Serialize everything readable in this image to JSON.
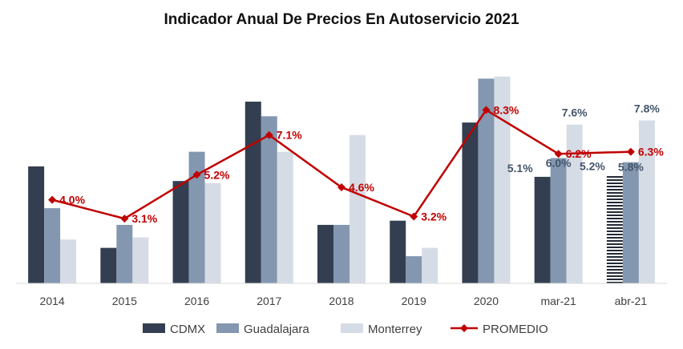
{
  "chart_data": {
    "type": "bar",
    "title": "Indicador Anual De Precios En Autoservicio 2021",
    "categories": [
      "2014",
      "2015",
      "2016",
      "2017",
      "2018",
      "2019",
      "2020",
      "mar-21",
      "abr-21"
    ],
    "series": [
      {
        "name": "CDMX",
        "type": "bar",
        "color": "#333f50",
        "values": [
          5.6,
          1.7,
          4.9,
          8.7,
          2.8,
          3.0,
          7.7,
          5.1,
          5.2
        ]
      },
      {
        "name": "Guadalajara",
        "type": "bar",
        "color": "#8497b0",
        "values": [
          3.6,
          2.8,
          6.3,
          8.0,
          2.8,
          1.3,
          9.8,
          6.0,
          5.8
        ]
      },
      {
        "name": "Monterrey",
        "type": "bar",
        "color": "#d6dce5",
        "values": [
          2.1,
          2.2,
          4.8,
          6.3,
          7.1,
          1.7,
          9.9,
          7.6,
          7.8
        ]
      },
      {
        "name": "PROMEDIO",
        "type": "line",
        "color": "#c00000",
        "values": [
          4.0,
          3.1,
          5.2,
          7.1,
          4.6,
          3.2,
          8.3,
          6.2,
          6.3
        ]
      }
    ],
    "data_labels": [
      {
        "series": "PROMEDIO",
        "category": "2014",
        "text": "4.0%",
        "color": "#c00000"
      },
      {
        "series": "PROMEDIO",
        "category": "2015",
        "text": "3.1%",
        "color": "#c00000"
      },
      {
        "series": "PROMEDIO",
        "category": "2016",
        "text": "5.2%",
        "color": "#c00000"
      },
      {
        "series": "PROMEDIO",
        "category": "2017",
        "text": "7.1%",
        "color": "#c00000"
      },
      {
        "series": "PROMEDIO",
        "category": "2018",
        "text": "4.6%",
        "color": "#c00000"
      },
      {
        "series": "PROMEDIO",
        "category": "2019",
        "text": "3.2%",
        "color": "#c00000"
      },
      {
        "series": "PROMEDIO",
        "category": "2020",
        "text": "8.3%",
        "color": "#c00000"
      },
      {
        "series": "PROMEDIO",
        "category": "mar-21",
        "text": "6.2%",
        "color": "#c00000"
      },
      {
        "series": "PROMEDIO",
        "category": "abr-21",
        "text": "6.3%",
        "color": "#c00000"
      },
      {
        "series": "CDMX",
        "category": "mar-21",
        "text": "5.1%",
        "color": "#44546a"
      },
      {
        "series": "Guadalajara",
        "category": "mar-21",
        "text": "6.0%",
        "color": "#44546a"
      },
      {
        "series": "Monterrey",
        "category": "mar-21",
        "text": "7.6%",
        "color": "#44546a"
      },
      {
        "series": "CDMX",
        "category": "abr-21",
        "text": "5.2%",
        "color": "#44546a"
      },
      {
        "series": "Guadalajara",
        "category": "abr-21",
        "text": "5.8%",
        "color": "#44546a"
      },
      {
        "series": "Monterrey",
        "category": "abr-21",
        "text": "7.8%",
        "color": "#44546a"
      }
    ],
    "hatched_bar": {
      "series": "CDMX",
      "category": "abr-21",
      "pattern": "horizontal-stripes"
    },
    "ylim": [
      0,
      10.5
    ],
    "y_axis_visible": false,
    "grid": false,
    "legend_position": "bottom"
  }
}
